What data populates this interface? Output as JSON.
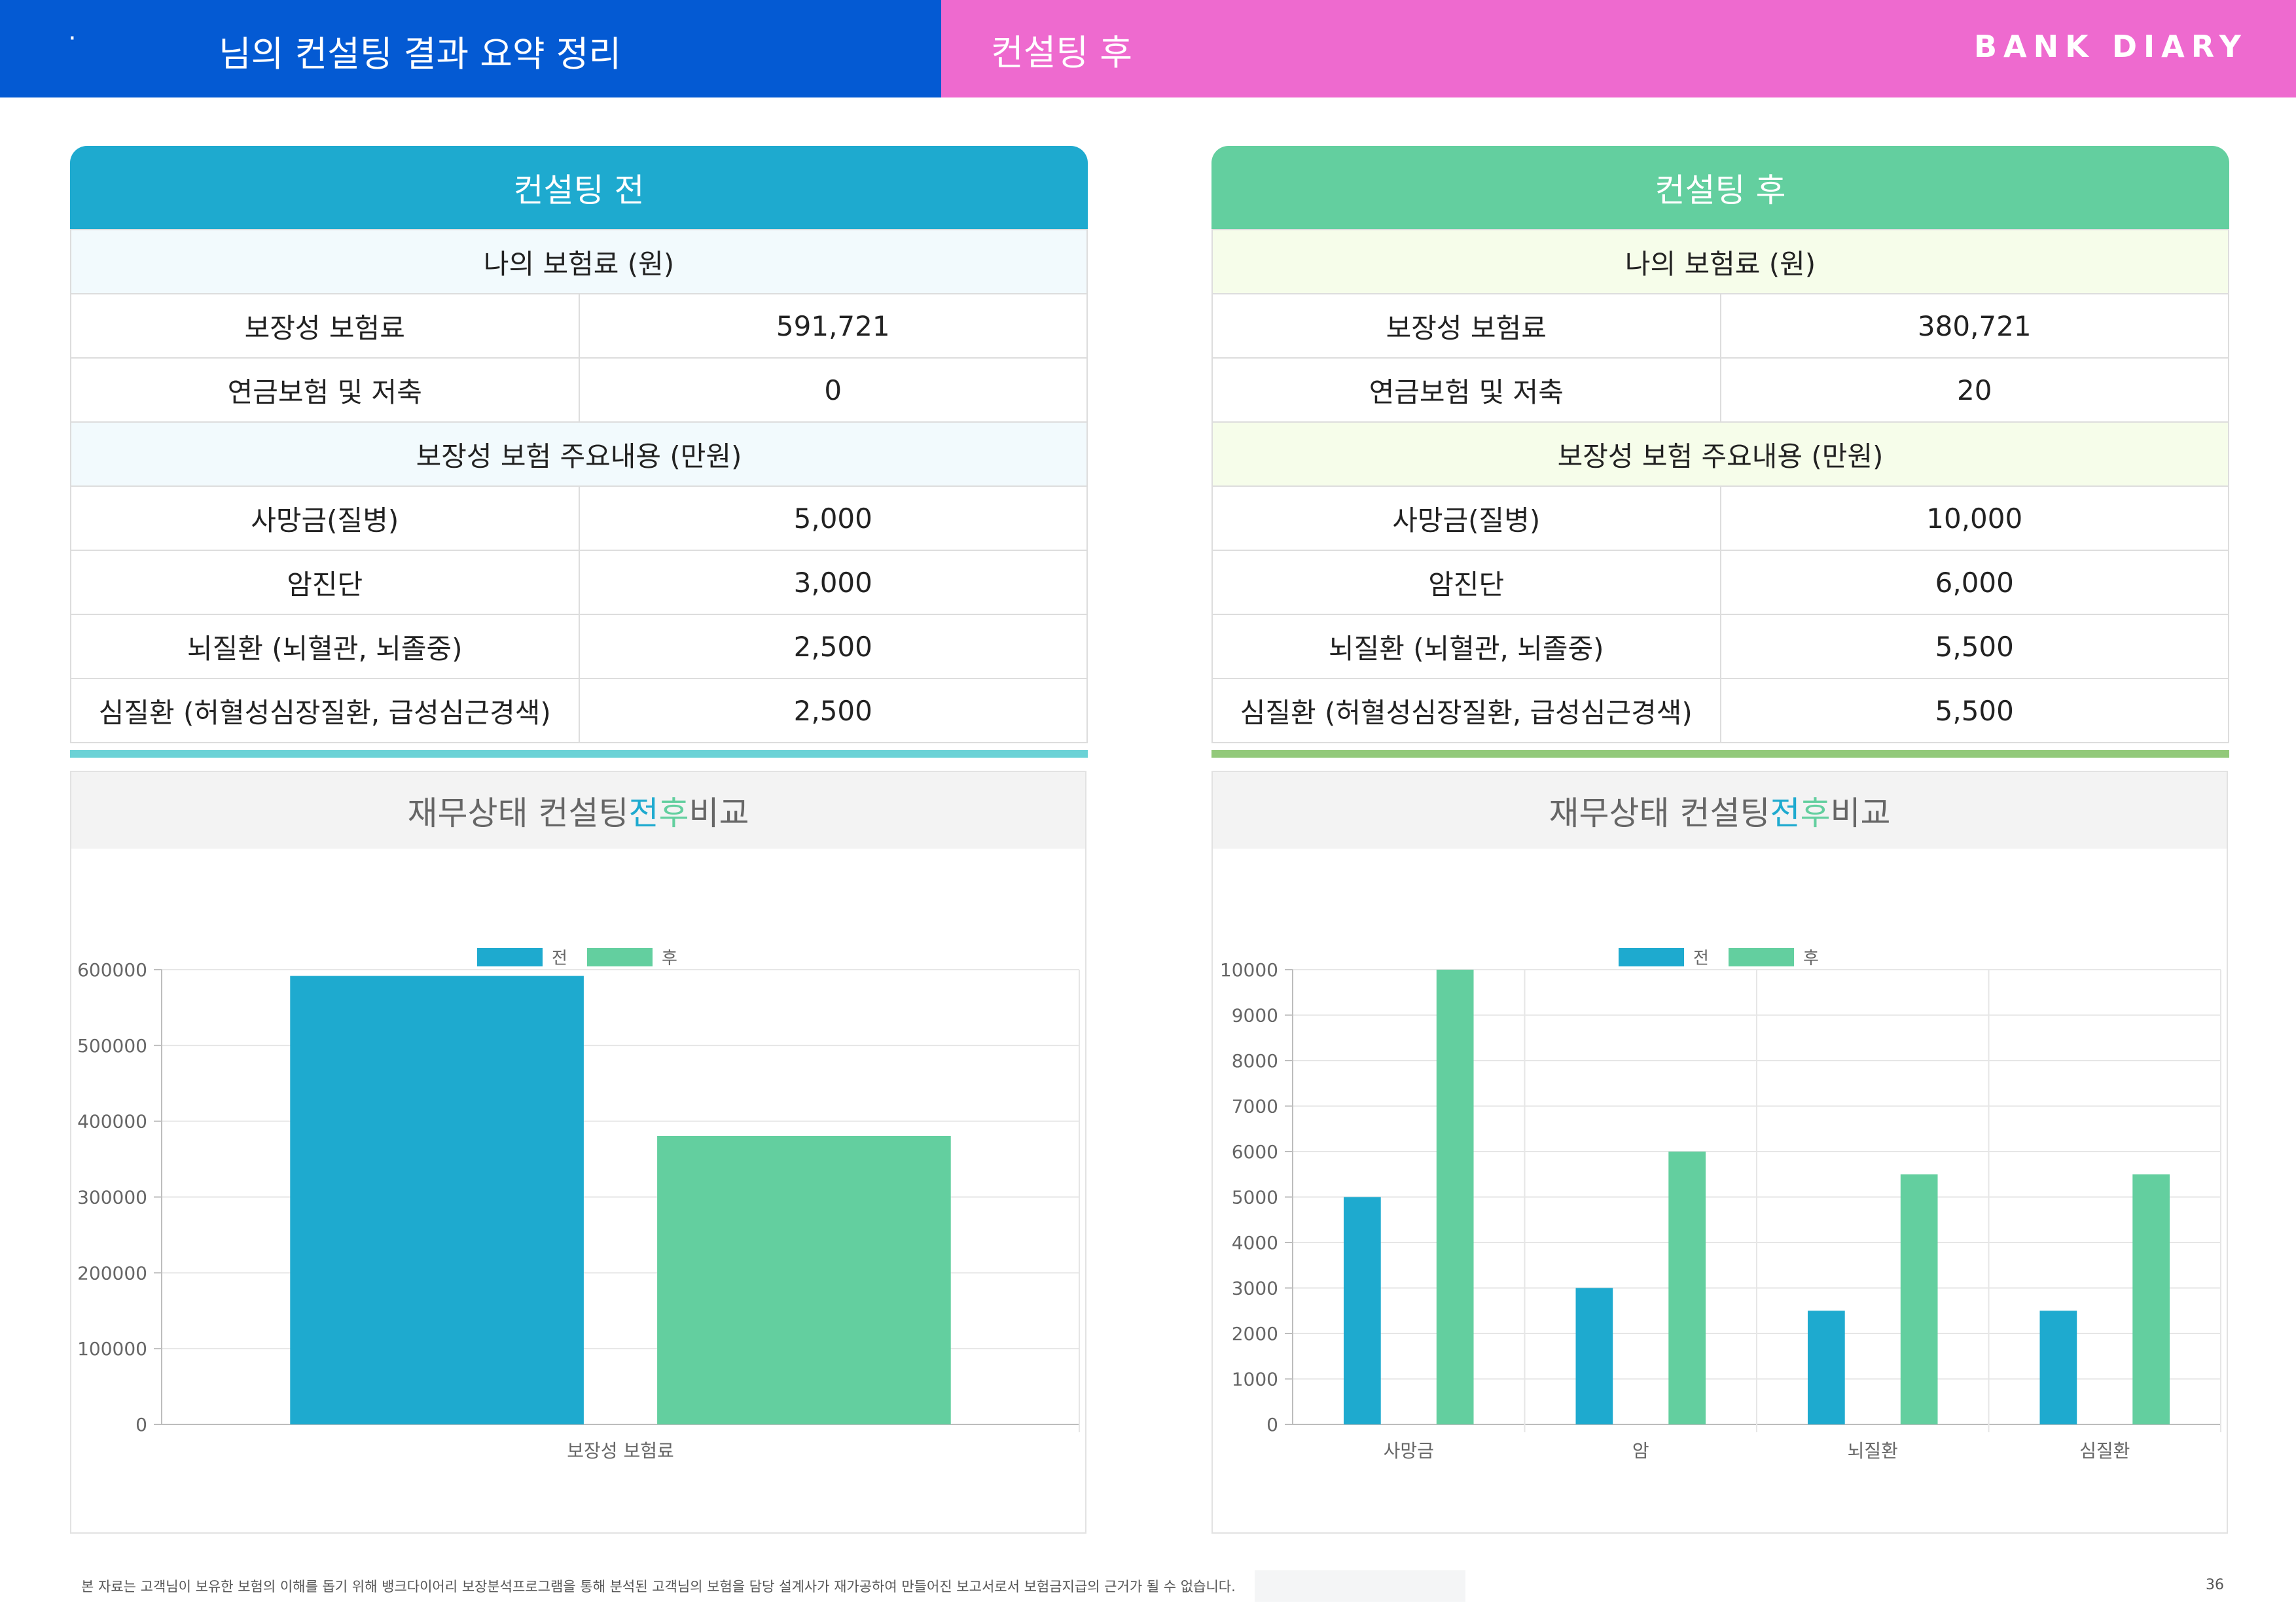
{
  "header": {
    "dot": "·",
    "title": "님의 컨설팅 결과 요약 정리",
    "subtitle": "컨설팅 후",
    "brand": "BANK DIARY",
    "colors": {
      "left": "#045ad3",
      "right": "#ee6acf"
    }
  },
  "before": {
    "title": "컨설팅 전",
    "premium_header": "나의 보험료 (원)",
    "premiums": [
      {
        "label": "보장성 보험료",
        "value": "591,721"
      },
      {
        "label": "연금보험 및 저축",
        "value": "0"
      }
    ],
    "coverage_header": "보장성 보험 주요내용 (만원)",
    "coverage": [
      {
        "label": "사망금(질병)",
        "value": "5,000"
      },
      {
        "label": "암진단",
        "value": "3,000"
      },
      {
        "label": "뇌질환 (뇌혈관, 뇌졸중)",
        "value": "2,500"
      },
      {
        "label": "심질환 (허혈성심장질환, 급성심근경색)",
        "value": "2,500"
      }
    ]
  },
  "after": {
    "title": "컨설팅 후",
    "premium_header": "나의 보험료 (원)",
    "premiums": [
      {
        "label": "보장성 보험료",
        "value": "380,721"
      },
      {
        "label": "연금보험 및 저축",
        "value": "20"
      }
    ],
    "coverage_header": "보장성 보험 주요내용 (만원)",
    "coverage": [
      {
        "label": "사망금(질병)",
        "value": "10,000"
      },
      {
        "label": "암진단",
        "value": "6,000"
      },
      {
        "label": "뇌질환 (뇌혈관, 뇌졸중)",
        "value": "5,500"
      },
      {
        "label": "심질환 (허혈성심장질환, 급성심근경색)",
        "value": "5,500"
      }
    ]
  },
  "chart_title": {
    "prefix": "재무상태 컨설팅 ",
    "hl_before": "전",
    "hl_after": "후",
    "suffix": " 비교"
  },
  "chart_data": [
    {
      "type": "bar",
      "categories": [
        "보장성 보험료"
      ],
      "series": [
        {
          "name": "전",
          "values": [
            591721
          ],
          "color": "#1eaacf"
        },
        {
          "name": "후",
          "values": [
            380721
          ],
          "color": "#63cf9f"
        }
      ],
      "ylim": [
        0,
        600000
      ],
      "yticks": [
        0,
        100000,
        200000,
        300000,
        400000,
        500000,
        600000
      ],
      "legend": "top-center",
      "grid": true
    },
    {
      "type": "bar",
      "categories": [
        "사망금",
        "암",
        "뇌질환",
        "심질환"
      ],
      "series": [
        {
          "name": "전",
          "values": [
            5000,
            3000,
            2500,
            2500
          ],
          "color": "#1eaacf"
        },
        {
          "name": "후",
          "values": [
            10000,
            6000,
            5500,
            5500
          ],
          "color": "#63cf9f"
        }
      ],
      "ylim": [
        0,
        10000
      ],
      "yticks": [
        0,
        1000,
        2000,
        3000,
        4000,
        5000,
        6000,
        7000,
        8000,
        9000,
        10000
      ],
      "legend": "top-center",
      "grid": true
    }
  ],
  "footer": {
    "disclaimer": "본 자료는 고객님이 보유한 보험의 이해를 돕기 위해 뱅크다이어리 보장분석프로그램을 통해 분석된 고객님의 보험을 담당 설계사가 재가공하여 만들어진 보고서로서 보험금지급의 근거가 될 수 없습니다.",
    "page": "36"
  }
}
